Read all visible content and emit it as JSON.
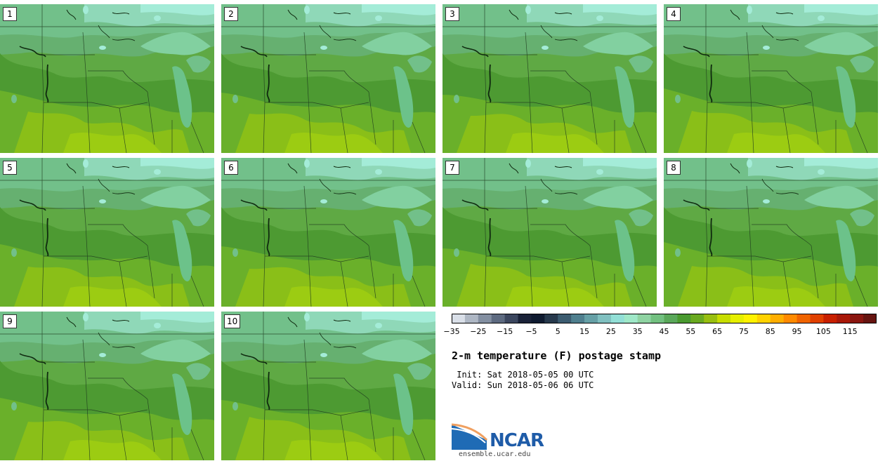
{
  "panels": [
    {
      "label": "1"
    },
    {
      "label": "2"
    },
    {
      "label": "3"
    },
    {
      "label": "4"
    },
    {
      "label": "5"
    },
    {
      "label": "6"
    },
    {
      "label": "7"
    },
    {
      "label": "8"
    },
    {
      "label": "9"
    },
    {
      "label": "10"
    }
  ],
  "colorbar": {
    "colors": [
      "#d9dfe8",
      "#aeb7c4",
      "#838fa1",
      "#5d6a80",
      "#3b465e",
      "#1a2238",
      "#0f1b30",
      "#27394c",
      "#3c5c70",
      "#4f7f8e",
      "#66a0a6",
      "#80c0c0",
      "#92dfd6",
      "#9fe8c8",
      "#8fd3a2",
      "#72c080",
      "#5aa85a",
      "#4a9a30",
      "#6aaa20",
      "#98bf10",
      "#c7dd00",
      "#e6ef00",
      "#fff200",
      "#ffd200",
      "#ffae00",
      "#ff8a00",
      "#f06400",
      "#e04000",
      "#c82000",
      "#a81808",
      "#8a1610",
      "#661410"
    ],
    "ticks": [
      "−35",
      "−25",
      "−15",
      "−5",
      "5",
      "15",
      "25",
      "35",
      "45",
      "55",
      "65",
      "75",
      "85",
      "95",
      "105",
      "115"
    ]
  },
  "title": "2-m temperature (F) postage stamp",
  "init_time": " Init: Sat 2018-05-05 00 UTC",
  "valid_time": "Valid: Sun 2018-05-06 06 UTC",
  "logo": {
    "text": "NCAR",
    "url": "ensemble.ucar.edu"
  }
}
